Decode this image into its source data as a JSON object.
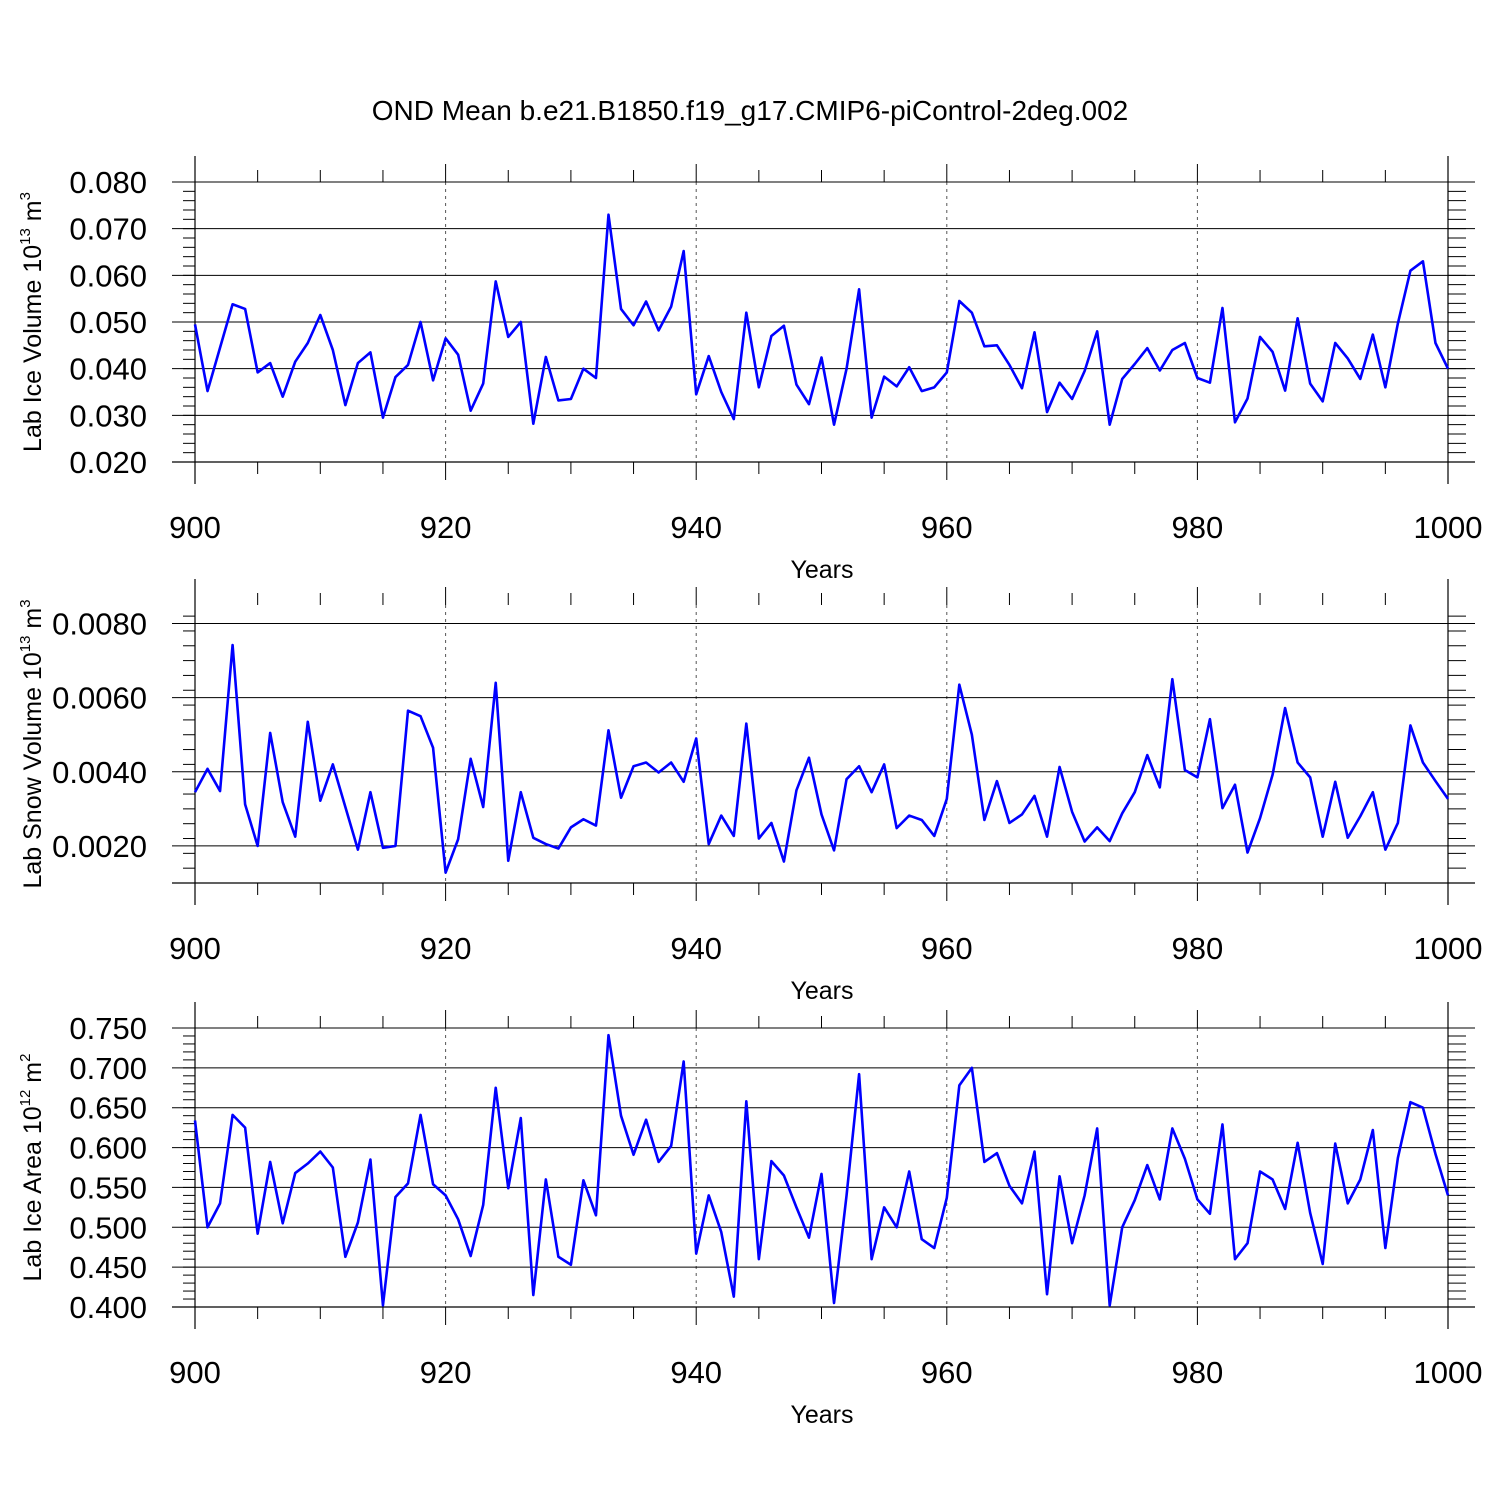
{
  "title": "OND Mean b.e21.B1850.f19_g17.CMIP6-piControl-2deg.002",
  "colors": {
    "series": "#0000ff",
    "axis": "#000000",
    "grid": "#555555"
  },
  "chart_data": [
    {
      "type": "line",
      "ylabel": "Lab Ice Volume 10",
      "ylabel_exp": "13",
      "ylabel_unit": " m",
      "ylabel_unit_exp": "3",
      "xlabel": "Years",
      "xlim": [
        900,
        1000
      ],
      "ylim": [
        0.02,
        0.08
      ],
      "xticks": [
        "900",
        "920",
        "940",
        "960",
        "980",
        "1000"
      ],
      "yticks": [
        "0.020",
        "0.030",
        "0.040",
        "0.050",
        "0.060",
        "0.070",
        "0.080"
      ],
      "x_start": 900,
      "values": [
        0.0495,
        0.0352,
        0.0445,
        0.0538,
        0.0528,
        0.0392,
        0.0412,
        0.034,
        0.0415,
        0.0455,
        0.0515,
        0.044,
        0.0322,
        0.0412,
        0.0435,
        0.0295,
        0.0382,
        0.0408,
        0.05,
        0.0375,
        0.0465,
        0.043,
        0.031,
        0.0368,
        0.0587,
        0.0468,
        0.05,
        0.0282,
        0.0425,
        0.0332,
        0.0335,
        0.04,
        0.038,
        0.073,
        0.0528,
        0.0493,
        0.0544,
        0.0482,
        0.0533,
        0.0652,
        0.0345,
        0.0427,
        0.035,
        0.0292,
        0.052,
        0.036,
        0.047,
        0.0492,
        0.0366,
        0.0324,
        0.0424,
        0.028,
        0.04,
        0.057,
        0.0295,
        0.0383,
        0.0362,
        0.0403,
        0.0352,
        0.036,
        0.0392,
        0.0545,
        0.052,
        0.0448,
        0.045,
        0.0408,
        0.0358,
        0.0478,
        0.0307,
        0.037,
        0.0335,
        0.0395,
        0.048,
        0.028,
        0.0378,
        0.041,
        0.0444,
        0.0396,
        0.044,
        0.0455,
        0.038,
        0.037,
        0.053,
        0.0285,
        0.0336,
        0.0468,
        0.0436,
        0.0353,
        0.0508,
        0.0368,
        0.033,
        0.0455,
        0.0422,
        0.0378,
        0.0473,
        0.036,
        0.0497,
        0.061,
        0.063,
        0.0455,
        0.04
      ],
      "grid_x": [
        920,
        940,
        960,
        980
      ]
    },
    {
      "type": "line",
      "ylabel": "Lab Snow Volume 10",
      "ylabel_exp": "13",
      "ylabel_unit": " m",
      "ylabel_unit_exp": "3",
      "xlabel": "Years",
      "xlim": [
        900,
        1000
      ],
      "ylim": [
        0.001,
        0.0085
      ],
      "xticks": [
        "900",
        "920",
        "940",
        "960",
        "980",
        "1000"
      ],
      "yticks": [
        "0.0020",
        "0.0040",
        "0.0060",
        "0.0080"
      ],
      "x_start": 900,
      "values": [
        0.00345,
        0.00408,
        0.00348,
        0.00742,
        0.00312,
        0.002,
        0.00505,
        0.00318,
        0.00225,
        0.00535,
        0.00322,
        0.0042,
        0.00305,
        0.0019,
        0.00345,
        0.00195,
        0.002,
        0.00565,
        0.0055,
        0.00465,
        0.00128,
        0.00218,
        0.00435,
        0.00305,
        0.0064,
        0.0016,
        0.00345,
        0.00222,
        0.00205,
        0.00193,
        0.0025,
        0.00272,
        0.00255,
        0.00512,
        0.0033,
        0.00415,
        0.00425,
        0.00398,
        0.00425,
        0.00373,
        0.0049,
        0.00205,
        0.00282,
        0.00227,
        0.0053,
        0.0022,
        0.00262,
        0.00158,
        0.0035,
        0.00438,
        0.00285,
        0.00188,
        0.0038,
        0.00415,
        0.00345,
        0.0042,
        0.00248,
        0.00282,
        0.0027,
        0.00227,
        0.00327,
        0.00635,
        0.005,
        0.0027,
        0.00375,
        0.00262,
        0.00285,
        0.00335,
        0.00225,
        0.00413,
        0.00292,
        0.00212,
        0.0025,
        0.00213,
        0.00288,
        0.00345,
        0.00445,
        0.00358,
        0.0065,
        0.00405,
        0.00385,
        0.00542,
        0.00302,
        0.00365,
        0.00182,
        0.00275,
        0.00392,
        0.00572,
        0.00425,
        0.00385,
        0.00225,
        0.00373,
        0.00222,
        0.0028,
        0.00345,
        0.0019,
        0.00262,
        0.00525,
        0.00425,
        0.00375,
        0.00327
      ],
      "grid_x": [
        920,
        940,
        960,
        980
      ]
    },
    {
      "type": "line",
      "ylabel": "Lab Ice Area 10",
      "ylabel_exp": "12",
      "ylabel_unit": " m",
      "ylabel_unit_exp": "2",
      "xlabel": "Years",
      "xlim": [
        900,
        1000
      ],
      "ylim": [
        0.4,
        0.75
      ],
      "xticks": [
        "900",
        "920",
        "940",
        "960",
        "980",
        "1000"
      ],
      "yticks": [
        "0.400",
        "0.450",
        "0.500",
        "0.550",
        "0.600",
        "0.650",
        "0.700",
        "0.750"
      ],
      "x_start": 900,
      "values": [
        0.634,
        0.5,
        0.53,
        0.641,
        0.625,
        0.492,
        0.582,
        0.505,
        0.568,
        0.58,
        0.595,
        0.575,
        0.463,
        0.506,
        0.585,
        0.402,
        0.538,
        0.555,
        0.641,
        0.554,
        0.54,
        0.51,
        0.464,
        0.528,
        0.675,
        0.549,
        0.637,
        0.415,
        0.56,
        0.463,
        0.453,
        0.559,
        0.515,
        0.741,
        0.64,
        0.591,
        0.635,
        0.582,
        0.602,
        0.708,
        0.467,
        0.54,
        0.494,
        0.413,
        0.658,
        0.46,
        0.583,
        0.565,
        0.525,
        0.487,
        0.567,
        0.405,
        0.54,
        0.692,
        0.46,
        0.525,
        0.5,
        0.57,
        0.485,
        0.474,
        0.537,
        0.678,
        0.7,
        0.582,
        0.593,
        0.552,
        0.53,
        0.595,
        0.416,
        0.564,
        0.48,
        0.54,
        0.624,
        0.402,
        0.5,
        0.534,
        0.578,
        0.535,
        0.624,
        0.586,
        0.535,
        0.517,
        0.629,
        0.46,
        0.48,
        0.57,
        0.56,
        0.523,
        0.606,
        0.518,
        0.454,
        0.605,
        0.53,
        0.56,
        0.622,
        0.474,
        0.587,
        0.657,
        0.65,
        0.592,
        0.54
      ],
      "grid_x": [
        920,
        940,
        960,
        980
      ]
    }
  ]
}
